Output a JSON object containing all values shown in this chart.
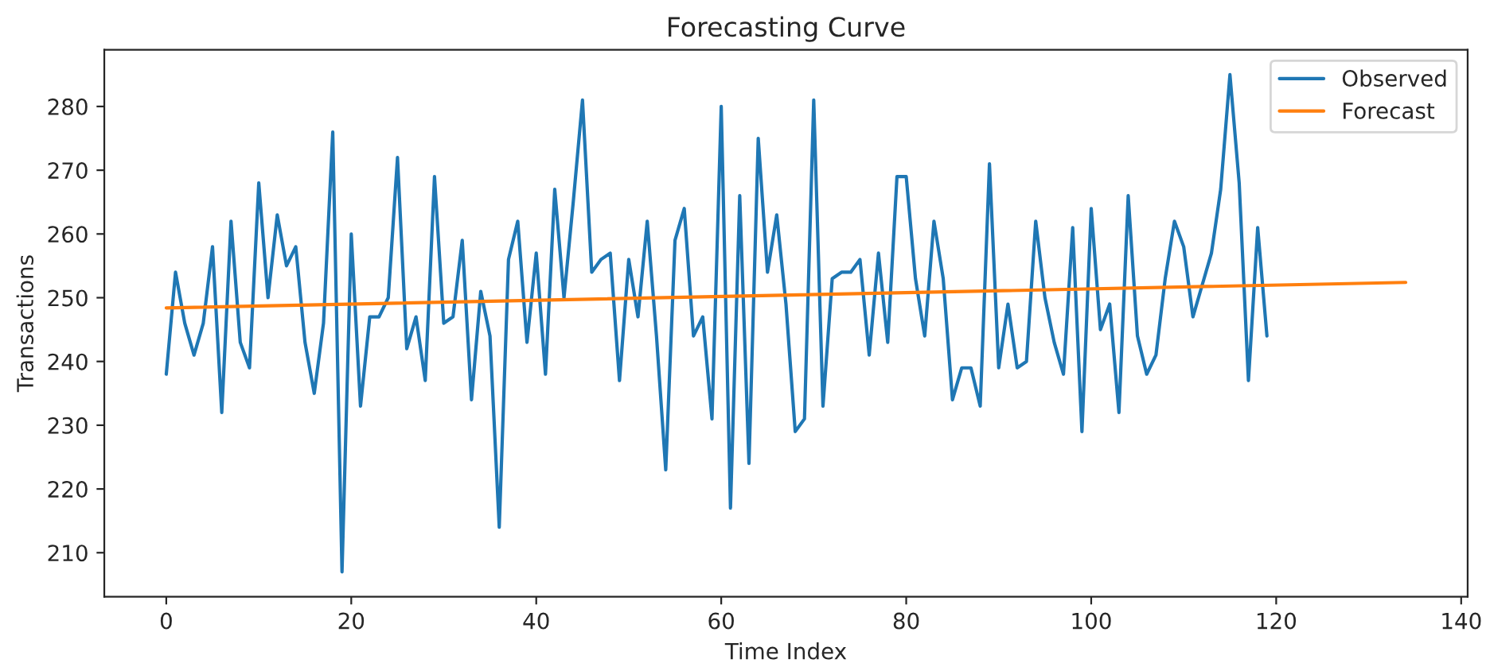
{
  "chart_data": {
    "type": "line",
    "title": "Forecasting Curve",
    "xlabel": "Time Index",
    "ylabel": "Transactions",
    "xlim": [
      -6.7,
      140.7
    ],
    "ylim": [
      203.1,
      288.9
    ],
    "xticks": [
      0,
      20,
      40,
      60,
      80,
      100,
      120,
      140
    ],
    "yticks": [
      210,
      220,
      230,
      240,
      250,
      260,
      270,
      280
    ],
    "legend": "top right",
    "grid": false,
    "series": [
      {
        "name": "Observed",
        "color": "#1f77b4",
        "x": [
          0,
          1,
          2,
          3,
          4,
          5,
          6,
          7,
          8,
          9,
          10,
          11,
          12,
          13,
          14,
          15,
          16,
          17,
          18,
          19,
          20,
          21,
          22,
          23,
          24,
          25,
          26,
          27,
          28,
          29,
          30,
          31,
          32,
          33,
          34,
          35,
          36,
          37,
          38,
          39,
          40,
          41,
          42,
          43,
          44,
          45,
          46,
          47,
          48,
          49,
          50,
          51,
          52,
          53,
          54,
          55,
          56,
          57,
          58,
          59,
          60,
          61,
          62,
          63,
          64,
          65,
          66,
          67,
          68,
          69,
          70,
          71,
          72,
          73,
          74,
          75,
          76,
          77,
          78,
          79,
          80,
          81,
          82,
          83,
          84,
          85,
          86,
          87,
          88,
          89,
          90,
          91,
          92,
          93,
          94,
          95,
          96,
          97,
          98,
          99,
          100,
          101,
          102,
          103,
          104,
          105,
          106,
          107,
          108,
          109,
          110,
          111,
          112,
          113,
          114,
          115,
          116,
          117,
          118,
          119
        ],
        "values": [
          238,
          254,
          246,
          241,
          246,
          258,
          232,
          262,
          243,
          239,
          268,
          250,
          263,
          255,
          258,
          243,
          235,
          246,
          276,
          207,
          260,
          233,
          247,
          247,
          250,
          272,
          242,
          247,
          237,
          269,
          246,
          247,
          259,
          234,
          251,
          244,
          214,
          256,
          262,
          243,
          257,
          238,
          267,
          250,
          265,
          281,
          254,
          256,
          257,
          237,
          256,
          247,
          262,
          244,
          223,
          259,
          264,
          244,
          247,
          231,
          280,
          217,
          266,
          224,
          275,
          254,
          263,
          249,
          229,
          231,
          281,
          233,
          253,
          254,
          254,
          256,
          241,
          257,
          243,
          269,
          269,
          253,
          244,
          262,
          253,
          234,
          239,
          239,
          233,
          271,
          239,
          249,
          239,
          240,
          262,
          250,
          243,
          238,
          261,
          229,
          264,
          245,
          249,
          232,
          266,
          244,
          238,
          241,
          253,
          262,
          258,
          247,
          252,
          257,
          267,
          285,
          268,
          237,
          261,
          244
        ]
      },
      {
        "name": "Forecast",
        "color": "#ff7f0e",
        "x": [
          0,
          134
        ],
        "values": [
          248.4,
          252.4
        ]
      }
    ]
  }
}
